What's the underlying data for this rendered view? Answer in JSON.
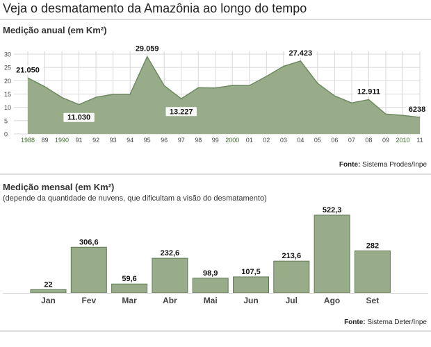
{
  "page_title": "Veja o desmatamento da Amazônia ao longo do tempo",
  "annual": {
    "title": "Medição anual (em Km²)",
    "source_label": "Fonte:",
    "source_name": "Sistema Prodes/Inpe"
  },
  "monthly": {
    "title": "Medição mensal (em Km²)",
    "subtitle": "(depende da quantidade de nuvens, que dificultam a visão do desmatamento)",
    "source_label": "Fonte:",
    "source_name": "Sistema Deter/Inpe"
  },
  "colors": {
    "area_fill": "#98ac8a",
    "area_stroke": "#6f8a62",
    "bar_fill": "#98ac8a",
    "bar_stroke": "#5f7a52",
    "highlight_year": "#3d6b2a",
    "grid": "#d8d8d8"
  },
  "chart_data": [
    {
      "type": "area",
      "title": "Medição anual (em Km²)",
      "xlabel": "",
      "ylabel": "",
      "ylim": [
        0,
        30
      ],
      "yticks": [
        "0",
        "5",
        "10",
        "15",
        "20",
        "25",
        "30"
      ],
      "xtick_labels": [
        "1988",
        "89",
        "1990",
        "91",
        "92",
        "93",
        "94",
        "95",
        "96",
        "97",
        "98",
        "99",
        "2000",
        "01",
        "02",
        "03",
        "04",
        "05",
        "06",
        "07",
        "08",
        "09",
        "2010",
        "11"
      ],
      "highlighted_ticks": [
        "1988",
        "1990",
        "2000",
        "2010"
      ],
      "x": [
        1988,
        1989,
        1990,
        1991,
        1992,
        1993,
        1994,
        1995,
        1996,
        1997,
        1998,
        1999,
        2000,
        2001,
        2002,
        2003,
        2004,
        2005,
        2006,
        2007,
        2008,
        2009,
        2010,
        2011
      ],
      "values": [
        21.05,
        17.77,
        13.73,
        11.03,
        13.79,
        14.9,
        14.9,
        29.059,
        18.16,
        13.227,
        17.38,
        17.26,
        18.23,
        18.17,
        21.65,
        25.4,
        27.423,
        19.01,
        14.29,
        11.65,
        12.911,
        7.46,
        7.0,
        6.238
      ],
      "grid": true,
      "data_labels": [
        {
          "index": 0,
          "text": "21.050"
        },
        {
          "index": 3,
          "text": "11.030"
        },
        {
          "index": 7,
          "text": "29.059"
        },
        {
          "index": 9,
          "text": "13.227"
        },
        {
          "index": 16,
          "text": "27.423"
        },
        {
          "index": 20,
          "text": "12.911"
        },
        {
          "index": 23,
          "text": "6238"
        }
      ]
    },
    {
      "type": "bar",
      "title": "Medição mensal (em Km²)",
      "xlabel": "",
      "ylabel": "",
      "categories": [
        "Jan",
        "Fev",
        "Mar",
        "Abr",
        "Mai",
        "Jun",
        "Jul",
        "Ago",
        "Set"
      ],
      "values": [
        22,
        306.6,
        59.6,
        232.6,
        98.9,
        107.5,
        213.6,
        522.3,
        282
      ],
      "value_labels": [
        "22",
        "306,6",
        "59,6",
        "232,6",
        "98,9",
        "107,5",
        "213,6",
        "522,3",
        "282"
      ],
      "ylim": [
        0,
        522.3
      ],
      "grid": false
    }
  ]
}
